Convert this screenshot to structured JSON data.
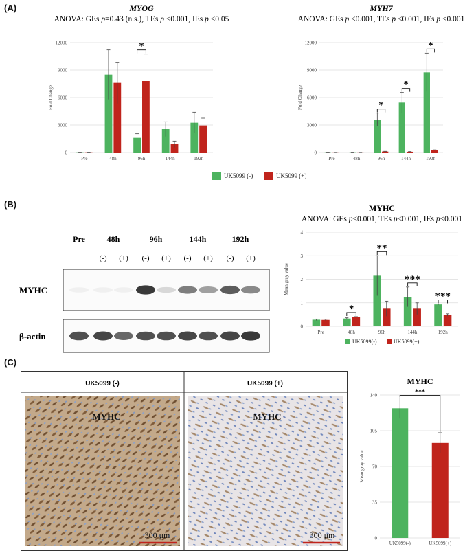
{
  "panels": {
    "a": "(A)",
    "b": "(B)",
    "c": "(C)"
  },
  "legend_a": [
    "UK5099 (-)",
    "UK5099 (+)"
  ],
  "colors": {
    "green": "#4db35f",
    "red": "#c0241c",
    "grid": "#dddddd"
  },
  "blot": {
    "timepoints": [
      "Pre",
      "48h",
      "96h",
      "144h",
      "192h"
    ],
    "treatments": [
      "(-)",
      "(+)",
      "(-)",
      "(+)",
      "(-)",
      "(+)",
      "(-)",
      "(+)"
    ],
    "rows": [
      "MYHC",
      "β-actin"
    ],
    "myhc_intensity": [
      0.05,
      0.05,
      0.05,
      0.85,
      0.15,
      0.55,
      0.4,
      0.7,
      0.5
    ],
    "actin_intensity": [
      0.75,
      0.8,
      0.65,
      0.75,
      0.75,
      0.8,
      0.75,
      0.8,
      0.85
    ]
  },
  "ihc": {
    "labels": [
      "UK5099 (-)",
      "UK5099 (+)"
    ],
    "stain": "MYHC",
    "scale": "300 μm"
  },
  "chart_data": [
    {
      "type": "bar",
      "title": "MYOG",
      "subtitle": "ANOVA: GEs p=0.43 (n.s.), TEs p <0.001, IEs p <0.05",
      "categories": [
        "Pre",
        "48h",
        "96h",
        "144h",
        "192h"
      ],
      "ylabel": "Fold Change",
      "ylim": [
        0,
        12000
      ],
      "yticks": [
        "0",
        "3000",
        "6000",
        "9000",
        "12000"
      ],
      "series": [
        {
          "name": "UK5099 (-)",
          "values": [
            20,
            8500,
            1600,
            2550,
            3250
          ],
          "err": [
            10,
            2700,
            450,
            800,
            1150
          ]
        },
        {
          "name": "UK5099 (+)",
          "values": [
            20,
            7600,
            7800,
            900,
            2950
          ],
          "err": [
            10,
            2250,
            2950,
            350,
            800
          ]
        }
      ],
      "annotations": [
        {
          "category": "96h",
          "label": "*"
        }
      ]
    },
    {
      "type": "bar",
      "title": "MYH7",
      "subtitle": "ANOVA: GEs p <0.001, TEs p <0.001, IEs p <0.001",
      "categories": [
        "Pre",
        "48h",
        "96h",
        "144h",
        "192h"
      ],
      "ylabel": "Fold Change",
      "ylim": [
        0,
        12000
      ],
      "yticks": [
        "0",
        "3000",
        "6000",
        "9000",
        "12000"
      ],
      "series": [
        {
          "name": "UK5099 (-)",
          "values": [
            20,
            20,
            3600,
            5450,
            8750
          ],
          "err": [
            10,
            10,
            700,
            1100,
            2100
          ]
        },
        {
          "name": "UK5099 (+)",
          "values": [
            10,
            10,
            100,
            80,
            250
          ],
          "err": [
            5,
            5,
            30,
            20,
            40
          ]
        }
      ],
      "annotations": [
        {
          "category": "96h",
          "label": "*"
        },
        {
          "category": "144h",
          "label": "*"
        },
        {
          "category": "192h",
          "label": "*"
        }
      ]
    },
    {
      "type": "bar",
      "title": "MYHC",
      "subtitle": "ANOVA: GEs p<0.001, TEs p<0.001, IEs p<0.001",
      "categories": [
        "Pre",
        "48h",
        "96h",
        "144h",
        "192h"
      ],
      "ylabel": "Mean gray value",
      "ylim": [
        0,
        4
      ],
      "yticks": [
        "0",
        "1",
        "2",
        "3",
        "4"
      ],
      "series": [
        {
          "name": "UK5099(-)",
          "values": [
            0.28,
            0.33,
            2.15,
            1.25,
            0.93
          ],
          "err": [
            0.03,
            0.03,
            0.85,
            0.42,
            0.02
          ]
        },
        {
          "name": "UK5099(+)",
          "values": [
            0.27,
            0.38,
            0.75,
            0.75,
            0.48
          ],
          "err": [
            0.03,
            0.03,
            0.32,
            0.25,
            0.05
          ]
        }
      ],
      "annotations": [
        {
          "category": "48h",
          "label": "*"
        },
        {
          "category": "96h",
          "label": "**"
        },
        {
          "category": "144h",
          "label": "***"
        },
        {
          "category": "192h",
          "label": "***"
        }
      ]
    },
    {
      "type": "bar",
      "title": "MYHC",
      "categories": [
        "UK5099(-)",
        "UK5099(+)"
      ],
      "ylabel": "Mean gray value",
      "ylim": [
        0,
        140
      ],
      "yticks": [
        "0",
        "35",
        "70",
        "105",
        "140"
      ],
      "values": [
        127,
        93
      ],
      "err": [
        10,
        10
      ],
      "annotations": [
        {
          "label": "***"
        }
      ]
    }
  ]
}
